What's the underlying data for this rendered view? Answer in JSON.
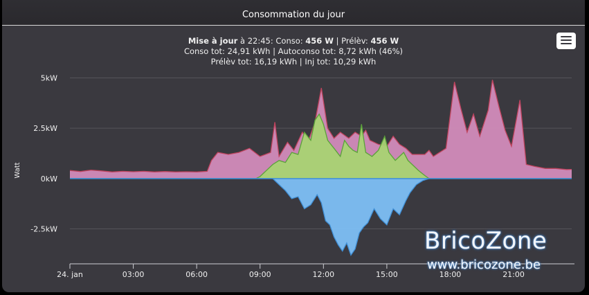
{
  "window": {
    "title": "Consommation du jour"
  },
  "subtitle": {
    "line1": {
      "maj_label": "Mise à jour",
      "time_text": " à 22:45: Conso: ",
      "conso_value": "456 W",
      "sep_text": " | Prélèv: ",
      "prelev_value": "456 W"
    },
    "line2": "Conso tot: 24,91 kWh | Autoconso tot: 8,72 kWh (46%)",
    "line3": "Prélèv tot: 16,19 kWh | Inj tot: 10,29 kWh"
  },
  "menu": {
    "icon": "hamburger-menu-icon"
  },
  "watermark": {
    "brand": "BricoZone",
    "url": "www.bricozone.be"
  },
  "colors": {
    "background": "#3a393f",
    "conso": "#d28bba",
    "conso_line": "#c0445e",
    "autoconso": "#a8d373",
    "autoconso_line": "#5aa23a",
    "injection": "#7dbff5",
    "injection_line": "#3f8fd6",
    "grid": "#55545a",
    "text": "#f0f0f0"
  },
  "chart_data": {
    "type": "area",
    "xlabel": "",
    "ylabel": "Watt",
    "x_unit": "hours",
    "xlim": [
      0,
      23.75
    ],
    "ylim": [
      -4200,
      5600
    ],
    "y_ticks": [
      5000,
      2500,
      0,
      -2500
    ],
    "y_tick_labels": [
      "5kW",
      "2.5kW",
      "0kW",
      "-2.5kW"
    ],
    "x_ticks": [
      0,
      3,
      6,
      9,
      12,
      15,
      18,
      21
    ],
    "x_tick_labels": [
      "24. jan",
      "03:00",
      "06:00",
      "09:00",
      "12:00",
      "15:00",
      "18:00",
      "21:00"
    ],
    "grid": true,
    "legend": "none",
    "series": [
      {
        "points": [
          [
            0.0,
            400
          ],
          [
            0.5,
            350
          ],
          [
            1.0,
            420
          ],
          [
            1.5,
            380
          ],
          [
            2.0,
            330
          ],
          [
            2.5,
            360
          ],
          [
            3.0,
            340
          ],
          [
            3.5,
            360
          ],
          [
            4.0,
            330
          ],
          [
            4.5,
            350
          ],
          [
            5.0,
            330
          ],
          [
            5.5,
            340
          ],
          [
            6.0,
            330
          ],
          [
            6.5,
            360
          ],
          [
            6.7,
            900
          ],
          [
            7.0,
            1300
          ],
          [
            7.5,
            1200
          ],
          [
            8.0,
            1300
          ],
          [
            8.5,
            1500
          ],
          [
            9.0,
            1100
          ],
          [
            9.5,
            1300
          ],
          [
            9.7,
            2800
          ],
          [
            9.9,
            1100
          ],
          [
            10.3,
            1800
          ],
          [
            10.6,
            1400
          ],
          [
            11.0,
            2300
          ],
          [
            11.3,
            1900
          ],
          [
            11.6,
            2800
          ],
          [
            11.9,
            4500
          ],
          [
            12.2,
            2500
          ],
          [
            12.5,
            2000
          ],
          [
            12.8,
            2300
          ],
          [
            13.2,
            2000
          ],
          [
            13.5,
            2300
          ],
          [
            13.8,
            2100
          ],
          [
            14.0,
            2400
          ],
          [
            14.2,
            1900
          ],
          [
            14.6,
            1700
          ],
          [
            15.0,
            1600
          ],
          [
            15.3,
            2100
          ],
          [
            15.6,
            1700
          ],
          [
            15.9,
            1500
          ],
          [
            16.2,
            1200
          ],
          [
            16.5,
            1200
          ],
          [
            16.8,
            1200
          ],
          [
            17.0,
            1400
          ],
          [
            17.2,
            1100
          ],
          [
            17.5,
            1300
          ],
          [
            17.8,
            1500
          ],
          [
            18.2,
            4800
          ],
          [
            18.5,
            3500
          ],
          [
            18.8,
            2300
          ],
          [
            19.1,
            3200
          ],
          [
            19.4,
            2100
          ],
          [
            19.8,
            3400
          ],
          [
            20.0,
            4900
          ],
          [
            20.3,
            3600
          ],
          [
            20.6,
            2400
          ],
          [
            20.9,
            1600
          ],
          [
            21.3,
            3900
          ],
          [
            21.6,
            700
          ],
          [
            22.0,
            600
          ],
          [
            22.5,
            500
          ],
          [
            23.0,
            500
          ],
          [
            23.5,
            450
          ],
          [
            23.75,
            456
          ]
        ]
      },
      {
        "points": [
          [
            0.0,
            0
          ],
          [
            8.8,
            0
          ],
          [
            9.0,
            100
          ],
          [
            9.3,
            400
          ],
          [
            9.6,
            700
          ],
          [
            9.9,
            900
          ],
          [
            10.2,
            800
          ],
          [
            10.5,
            1300
          ],
          [
            10.8,
            1200
          ],
          [
            11.1,
            2300
          ],
          [
            11.4,
            1900
          ],
          [
            11.6,
            2900
          ],
          [
            11.8,
            3200
          ],
          [
            12.0,
            2700
          ],
          [
            12.2,
            1900
          ],
          [
            12.5,
            1500
          ],
          [
            12.8,
            1100
          ],
          [
            13.0,
            1900
          ],
          [
            13.2,
            1600
          ],
          [
            13.4,
            1400
          ],
          [
            13.6,
            1300
          ],
          [
            13.8,
            2700
          ],
          [
            14.0,
            1300
          ],
          [
            14.3,
            1100
          ],
          [
            14.6,
            1400
          ],
          [
            14.9,
            2100
          ],
          [
            15.1,
            1300
          ],
          [
            15.4,
            900
          ],
          [
            15.6,
            1100
          ],
          [
            15.8,
            1300
          ],
          [
            16.0,
            900
          ],
          [
            16.2,
            700
          ],
          [
            16.5,
            400
          ],
          [
            16.8,
            150
          ],
          [
            17.0,
            0
          ],
          [
            23.75,
            0
          ]
        ]
      },
      {
        "points": [
          [
            0.0,
            0
          ],
          [
            9.6,
            0
          ],
          [
            9.9,
            -300
          ],
          [
            10.2,
            -600
          ],
          [
            10.5,
            -1000
          ],
          [
            10.8,
            -900
          ],
          [
            11.1,
            -1500
          ],
          [
            11.4,
            -1300
          ],
          [
            11.7,
            -800
          ],
          [
            11.9,
            -1200
          ],
          [
            12.1,
            -2100
          ],
          [
            12.3,
            -2300
          ],
          [
            12.5,
            -2900
          ],
          [
            12.7,
            -3300
          ],
          [
            12.9,
            -3600
          ],
          [
            13.1,
            -3200
          ],
          [
            13.3,
            -3800
          ],
          [
            13.5,
            -3500
          ],
          [
            13.7,
            -2700
          ],
          [
            13.9,
            -2400
          ],
          [
            14.1,
            -2200
          ],
          [
            14.4,
            -1500
          ],
          [
            14.7,
            -2000
          ],
          [
            15.0,
            -2300
          ],
          [
            15.3,
            -1500
          ],
          [
            15.6,
            -1800
          ],
          [
            15.9,
            -1100
          ],
          [
            16.1,
            -700
          ],
          [
            16.4,
            -300
          ],
          [
            16.7,
            -100
          ],
          [
            17.0,
            0
          ],
          [
            23.75,
            0
          ]
        ]
      }
    ]
  }
}
